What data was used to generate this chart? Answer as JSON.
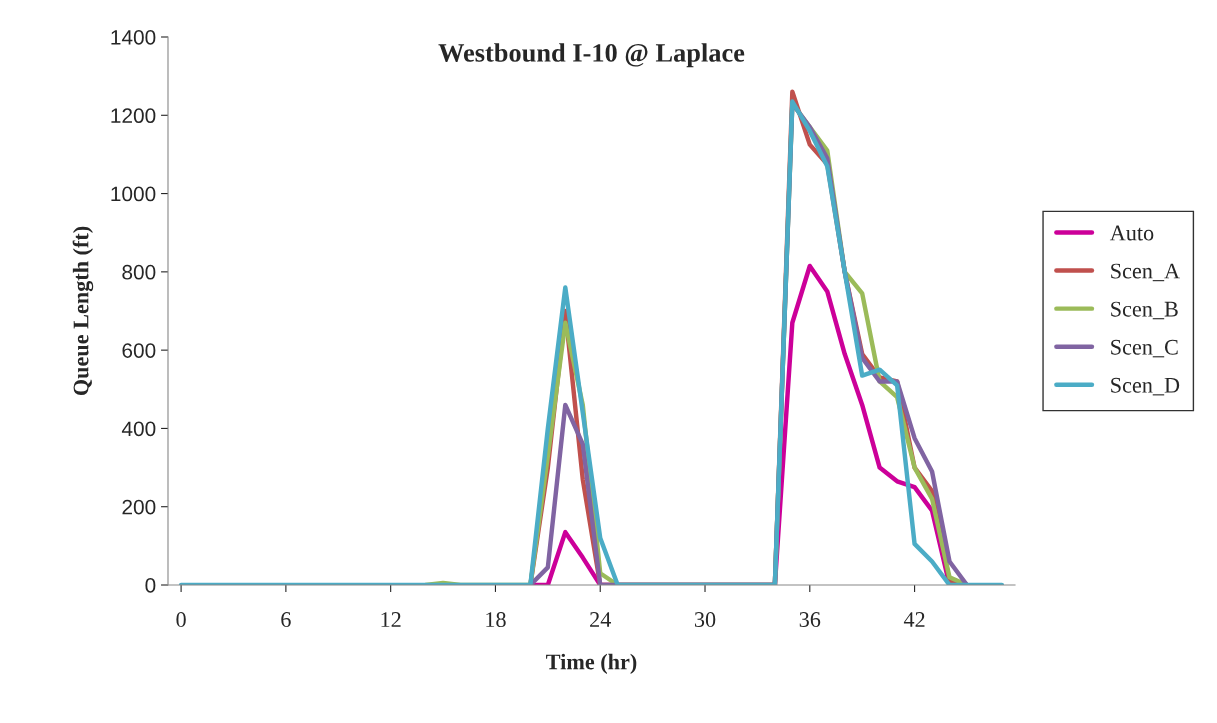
{
  "chart_data": {
    "type": "line",
    "title": "Westbound I-10 @ Laplace",
    "xlabel": "Time (hr)",
    "ylabel": "Queue Length (ft)",
    "x": [
      0,
      1,
      2,
      3,
      4,
      5,
      6,
      7,
      8,
      9,
      10,
      11,
      12,
      13,
      14,
      15,
      16,
      17,
      18,
      19,
      20,
      21,
      22,
      23,
      24,
      25,
      26,
      27,
      28,
      29,
      30,
      31,
      32,
      33,
      34,
      35,
      36,
      37,
      38,
      39,
      40,
      41,
      42,
      43,
      44,
      45,
      46,
      47
    ],
    "series": [
      {
        "name": "Auto",
        "color": "#cc0099",
        "values": [
          null,
          null,
          null,
          null,
          null,
          null,
          null,
          null,
          null,
          null,
          null,
          null,
          null,
          null,
          null,
          null,
          null,
          null,
          null,
          null,
          0,
          0,
          135,
          70,
          0,
          null,
          null,
          null,
          null,
          null,
          null,
          null,
          null,
          null,
          0,
          670,
          815,
          750,
          590,
          460,
          300,
          265,
          250,
          190,
          0,
          null,
          null,
          null
        ]
      },
      {
        "name": "Scen_A",
        "color": "#c0504d",
        "values": [
          null,
          null,
          null,
          null,
          null,
          null,
          null,
          null,
          null,
          null,
          null,
          null,
          null,
          null,
          null,
          null,
          null,
          null,
          null,
          null,
          0,
          300,
          700,
          270,
          0,
          0,
          null,
          null,
          null,
          null,
          null,
          null,
          null,
          null,
          0,
          1260,
          1125,
          1075,
          800,
          590,
          530,
          520,
          300,
          240,
          10,
          0,
          null,
          null
        ]
      },
      {
        "name": "Scen_B",
        "color": "#9bbb59",
        "values": [
          null,
          null,
          null,
          null,
          null,
          null,
          null,
          null,
          null,
          null,
          null,
          null,
          null,
          null,
          0,
          5,
          0,
          null,
          null,
          null,
          0,
          330,
          670,
          460,
          30,
          0,
          null,
          null,
          null,
          null,
          null,
          null,
          null,
          null,
          0,
          1230,
          1170,
          1110,
          800,
          745,
          520,
          480,
          300,
          220,
          20,
          0,
          null,
          null
        ]
      },
      {
        "name": "Scen_C",
        "color": "#8064a2",
        "values": [
          null,
          null,
          null,
          null,
          null,
          null,
          null,
          null,
          null,
          null,
          null,
          null,
          null,
          null,
          null,
          null,
          null,
          null,
          null,
          null,
          0,
          45,
          460,
          360,
          0,
          0,
          null,
          null,
          null,
          null,
          null,
          null,
          null,
          null,
          0,
          1230,
          1170,
          1090,
          800,
          580,
          520,
          520,
          375,
          290,
          60,
          0,
          null,
          null
        ]
      },
      {
        "name": "Scen_D",
        "color": "#4bacc6",
        "values": [
          0,
          0,
          0,
          0,
          0,
          0,
          0,
          0,
          0,
          0,
          0,
          0,
          0,
          0,
          0,
          0,
          0,
          0,
          0,
          0,
          0,
          400,
          760,
          440,
          120,
          0,
          0,
          0,
          0,
          0,
          0,
          0,
          0,
          0,
          0,
          1235,
          1160,
          1070,
          800,
          535,
          550,
          510,
          105,
          60,
          0,
          0,
          0,
          0
        ]
      }
    ],
    "xlim": [
      -0.75,
      47.75
    ],
    "xticks": [
      0,
      6,
      12,
      18,
      24,
      30,
      36,
      42
    ],
    "ylim": [
      0,
      1400
    ],
    "yticks": [
      0,
      200,
      400,
      600,
      800,
      1000,
      1200,
      1400
    ],
    "legend": "right",
    "grid": false,
    "marker": "none",
    "line_style": "solid"
  }
}
